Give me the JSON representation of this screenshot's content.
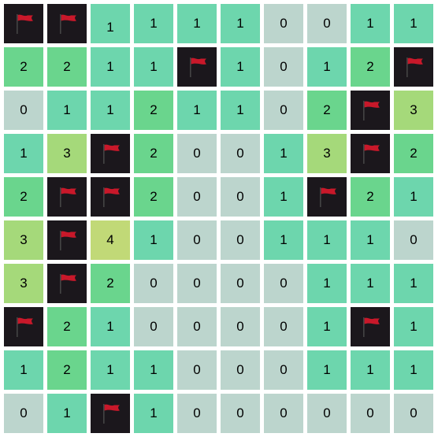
{
  "board": {
    "rows": [
      [
        "F",
        "F",
        "1",
        "1",
        "1",
        "1",
        "0",
        "0",
        "1",
        "1"
      ],
      [
        "2",
        "2",
        "1",
        "1",
        "F",
        "1",
        "0",
        "1",
        "2",
        "F"
      ],
      [
        "0",
        "1",
        "1",
        "2",
        "1",
        "1",
        "0",
        "2",
        "F",
        "3"
      ],
      [
        "1",
        "3",
        "F",
        "2",
        "0",
        "0",
        "1",
        "3",
        "F",
        "2"
      ],
      [
        "2",
        "F",
        "F",
        "2",
        "0",
        "0",
        "1",
        "F",
        "2",
        "1"
      ],
      [
        "3",
        "F",
        "4",
        "1",
        "0",
        "0",
        "1",
        "1",
        "1",
        "0"
      ],
      [
        "3",
        "F",
        "2",
        "0",
        "0",
        "0",
        "0",
        "1",
        "1",
        "1"
      ],
      [
        "F",
        "2",
        "1",
        "0",
        "0",
        "0",
        "0",
        "1",
        "F",
        "1"
      ],
      [
        "1",
        "2",
        "1",
        "1",
        "0",
        "0",
        "0",
        "1",
        "1",
        "1"
      ],
      [
        "0",
        "1",
        "F",
        "1",
        "0",
        "0",
        "0",
        "0",
        "0",
        "0"
      ]
    ]
  },
  "colors": {
    "flag_cell_bg": "#1b171c",
    "flag_red": "#c8182a",
    "flag_pole": "#444444",
    "number_bg": {
      "0": "#bcd5cd",
      "1": "#6dd6ad",
      "2": "#6ad58d",
      "3": "#a5d97a",
      "4": "#c1d977"
    }
  },
  "icons": {
    "flag": "red-flag-icon"
  }
}
